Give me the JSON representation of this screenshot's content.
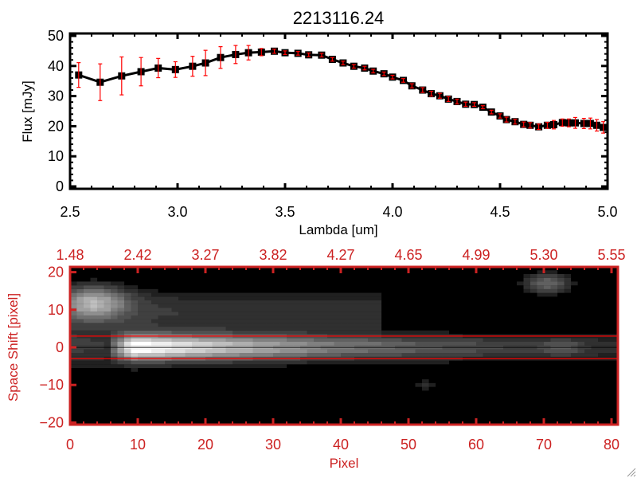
{
  "chart_data": [
    {
      "type": "line",
      "title": "2213116.24",
      "xlabel": "Lambda [um]",
      "ylabel": "Flux [mJy]",
      "xlim": [
        2.5,
        5.0
      ],
      "ylim": [
        -1,
        52
      ],
      "xticks": [
        "2.5",
        "3.0",
        "3.5",
        "4.0",
        "4.5",
        "5.0"
      ],
      "yticks": [
        "0",
        "10",
        "20",
        "30",
        "40",
        "50"
      ],
      "grid": false,
      "line_color": "#000000",
      "errorbar_color": "#ff0000",
      "marker": "filled-square",
      "x": [
        2.54,
        2.64,
        2.74,
        2.83,
        2.91,
        2.99,
        3.07,
        3.13,
        3.2,
        3.27,
        3.33,
        3.39,
        3.45,
        3.5,
        3.56,
        3.61,
        3.67,
        3.72,
        3.77,
        3.82,
        3.87,
        3.91,
        3.96,
        4.0,
        4.05,
        4.09,
        4.14,
        4.18,
        4.22,
        4.26,
        4.3,
        4.34,
        4.38,
        4.42,
        4.46,
        4.5,
        4.53,
        4.57,
        4.61,
        4.64,
        4.68,
        4.72,
        4.75,
        4.79,
        4.82,
        4.85,
        4.89,
        4.92,
        4.95,
        4.98
      ],
      "y": [
        37.0,
        34.6,
        36.7,
        38.1,
        39.3,
        38.8,
        39.9,
        41.0,
        42.8,
        43.8,
        44.4,
        44.6,
        44.9,
        44.4,
        44.2,
        43.7,
        43.6,
        42.2,
        41.0,
        39.9,
        39.3,
        38.3,
        37.4,
        36.3,
        35.2,
        33.4,
        32.0,
        30.8,
        30.1,
        29.0,
        28.2,
        27.3,
        27.2,
        26.3,
        24.7,
        23.4,
        22.2,
        21.5,
        20.6,
        20.3,
        19.8,
        20.3,
        20.5,
        21.2,
        21.1,
        21.1,
        20.9,
        20.9,
        20.3,
        19.6
      ],
      "yerr": [
        4.1,
        6.1,
        6.3,
        4.7,
        3.2,
        2.6,
        3.3,
        4.2,
        3.6,
        3.0,
        2.4,
        1.2,
        0.7,
        0.6,
        0.6,
        0.6,
        0.6,
        0.6,
        0.6,
        0.6,
        0.6,
        0.6,
        0.6,
        0.6,
        0.6,
        0.7,
        0.8,
        0.8,
        0.8,
        0.8,
        0.8,
        0.7,
        0.6,
        0.5,
        0.6,
        0.7,
        0.8,
        0.8,
        0.8,
        0.9,
        0.9,
        1.0,
        1.4,
        1.2,
        1.3,
        1.8,
        1.7,
        1.8,
        1.9,
        1.9
      ]
    },
    {
      "type": "heatmap",
      "xlabel": "Pixel",
      "ylabel": "Space Shift [pixel]",
      "xlim": [
        0,
        81
      ],
      "ylim": [
        -21,
        21
      ],
      "xticks": [
        "0",
        "10",
        "20",
        "30",
        "40",
        "50",
        "60",
        "70",
        "80"
      ],
      "yticks": [
        "20",
        "10",
        "0",
        "-10",
        "-20"
      ],
      "top_xticks": [
        "1.48",
        "2.42",
        "3.27",
        "3.82",
        "4.27",
        "4.65",
        "4.99",
        "5.30",
        "5.55"
      ],
      "colormap": "grayscale",
      "axis_color": "#cc2222",
      "extraction_lines": [
        3,
        -3
      ],
      "center_line": 0
    }
  ]
}
